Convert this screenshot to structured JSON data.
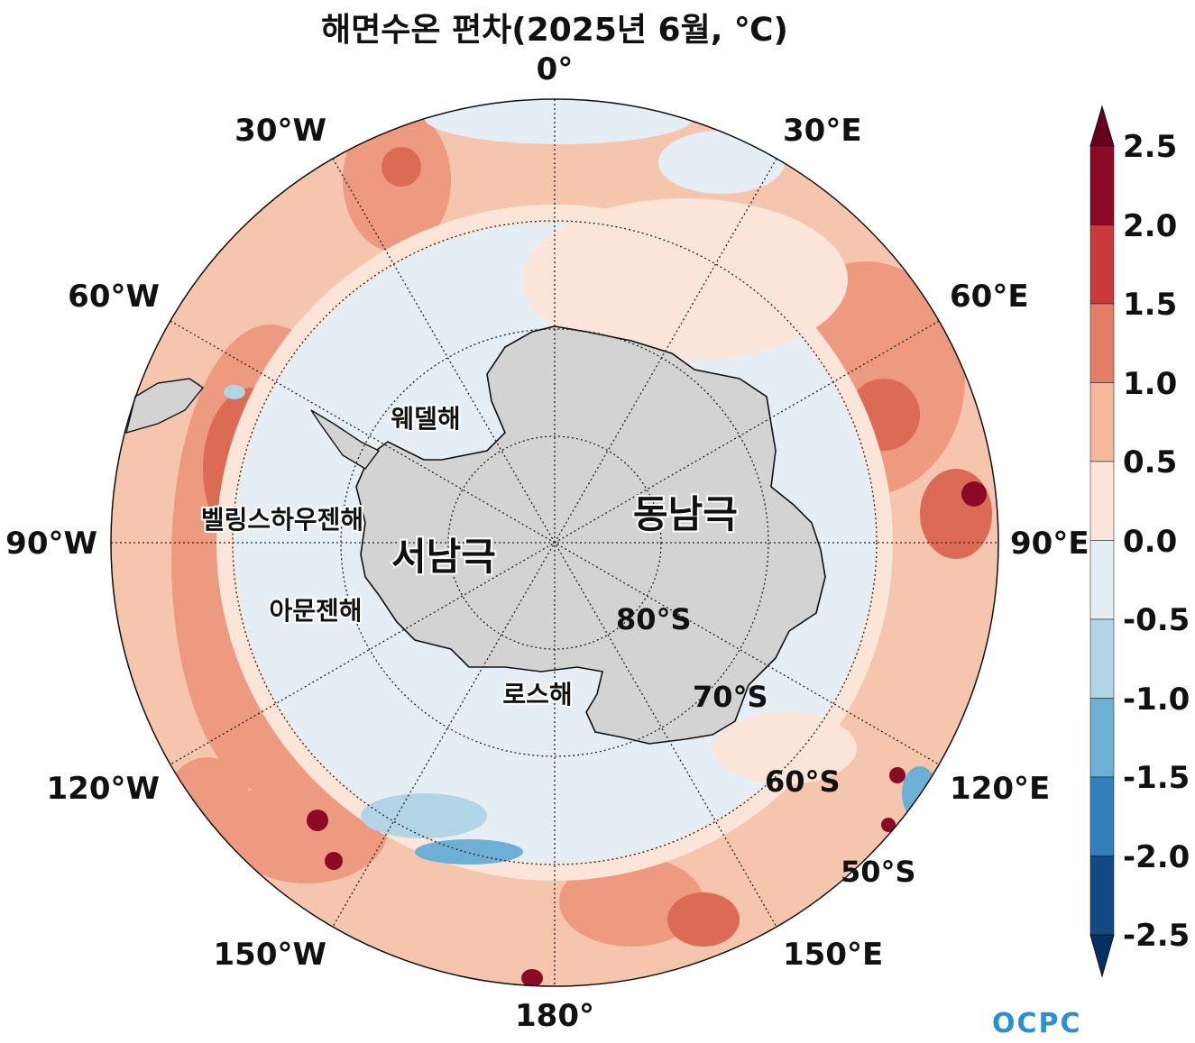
{
  "title": "해면수온 편차(2025년 6월, ℃)",
  "longitude_labels": {
    "lon_0": "0°",
    "lon_30e": "30°E",
    "lon_60e": "60°E",
    "lon_90e": "90°E",
    "lon_120e": "120°E",
    "lon_150e": "150°E",
    "lon_180": "180°",
    "lon_150w": "150°W",
    "lon_120w": "120°W",
    "lon_90w": "90°W",
    "lon_60w": "60°W",
    "lon_30w": "30°W"
  },
  "latitude_labels": {
    "lat_80s": "80°S",
    "lat_70s": "70°S",
    "lat_60s": "60°S",
    "lat_50s": "50°S"
  },
  "region_labels": {
    "east_antarctica": "동남극",
    "west_antarctica": "서남극",
    "weddell_sea": "웨델해",
    "bellingshausen_sea": "벨링스하우젠해",
    "amundsen_sea": "아문젠해",
    "ross_sea": "로스해"
  },
  "colorbar": {
    "ticks": [
      "2.5",
      "2.0",
      "1.5",
      "1.0",
      "0.5",
      "0.0",
      "-0.5",
      "-1.0",
      "-1.5",
      "-2.0",
      "-2.5"
    ],
    "colors": [
      "#8b0a26",
      "#c93a3c",
      "#e47f67",
      "#f6b79c",
      "#fbe5d9",
      "#e5edf5",
      "#b1d4e7",
      "#6eafd5",
      "#327fbc",
      "#134a86"
    ],
    "extend_top_color": "#67001f",
    "extend_bottom_color": "#053061"
  },
  "land_color": "#d3d3d3",
  "logo_text": "OCPC"
}
